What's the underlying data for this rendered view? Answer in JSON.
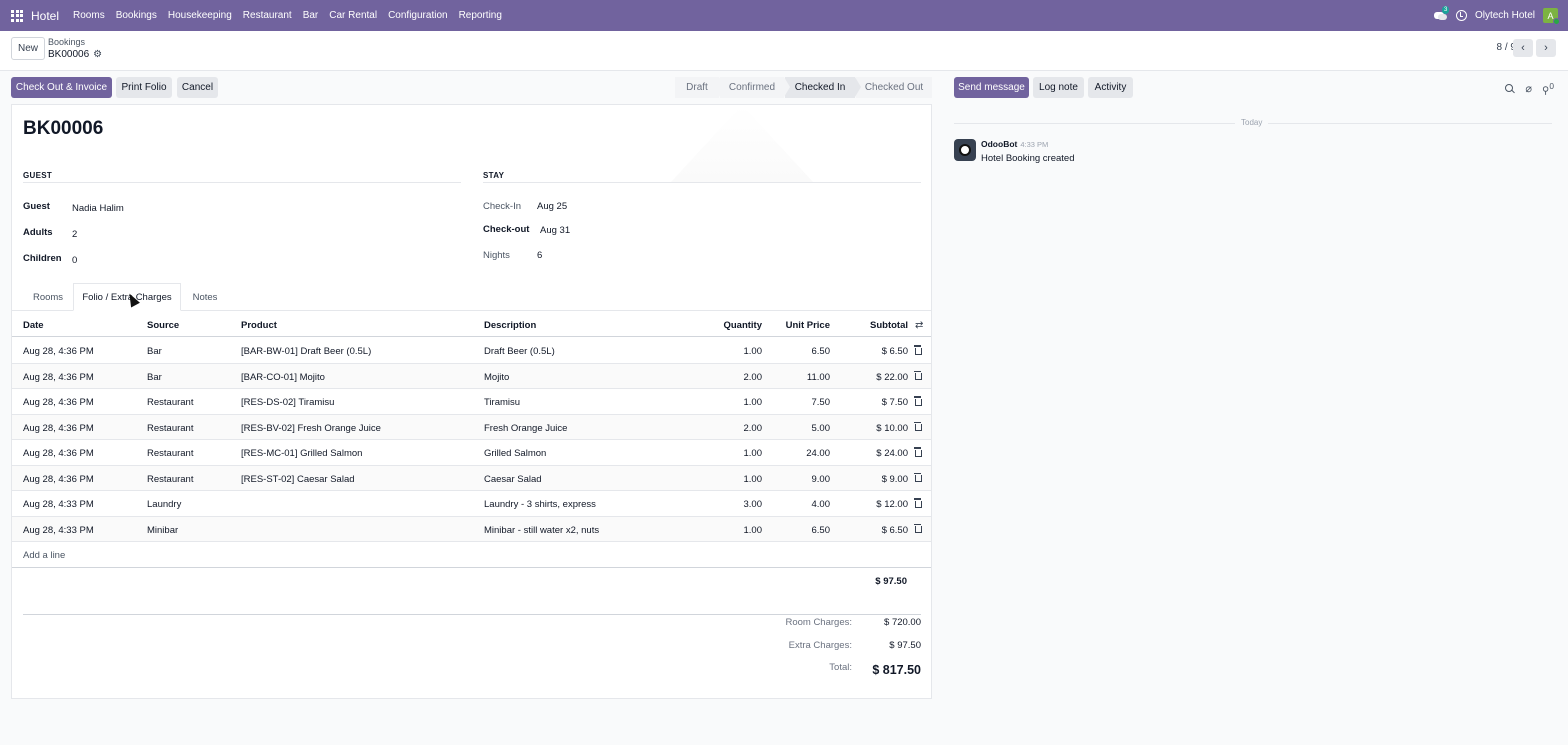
{
  "navbar": {
    "brand": "Hotel",
    "menu": [
      "Rooms",
      "Bookings",
      "Housekeeping",
      "Restaurant",
      "Bar",
      "Car Rental",
      "Configuration",
      "Reporting"
    ],
    "chat_badge": "3",
    "company": "Olytech Hotel",
    "avatar_letter": "A",
    "bar_color": "#71639e"
  },
  "control_panel": {
    "new_label": "New",
    "breadcrumb_parent": "Bookings",
    "breadcrumb_current": "BK00006",
    "pager": "8 / 9"
  },
  "actions": {
    "checkout_invoice": "Check Out & Invoice",
    "print_folio": "Print Folio",
    "cancel": "Cancel"
  },
  "statusbar": {
    "stages": [
      "Draft",
      "Confirmed",
      "Checked In",
      "Checked Out"
    ],
    "active": "Checked In"
  },
  "form": {
    "name": "BK00006",
    "guest_group_title": "GUEST",
    "stay_group_title": "STAY",
    "guest_label": "Guest",
    "guest_value": "Nadia Halim",
    "adults_label": "Adults",
    "adults_value": "2",
    "children_label": "Children",
    "children_value": "0",
    "checkin_label": "Check-In",
    "checkin_value": "Aug 25",
    "checkout_label": "Check-out",
    "checkout_value": "Aug 31",
    "nights_label": "Nights",
    "nights_value": "6"
  },
  "tabs": [
    "Rooms",
    "Folio / Extra Charges",
    "Notes"
  ],
  "active_tab": "Folio / Extra Charges",
  "table": {
    "headers": [
      "Date",
      "Source",
      "Product",
      "Description",
      "Quantity",
      "Unit Price",
      "Subtotal"
    ],
    "rows": [
      {
        "date": "Aug 28, 4:36 PM",
        "source": "Bar",
        "product": "[BAR-BW-01] Draft Beer (0.5L)",
        "description": "Draft Beer (0.5L)",
        "qty": "1.00",
        "price": "6.50",
        "subtotal": "$ 6.50"
      },
      {
        "date": "Aug 28, 4:36 PM",
        "source": "Bar",
        "product": "[BAR-CO-01] Mojito",
        "description": "Mojito",
        "qty": "2.00",
        "price": "11.00",
        "subtotal": "$ 22.00"
      },
      {
        "date": "Aug 28, 4:36 PM",
        "source": "Restaurant",
        "product": "[RES-DS-02] Tiramisu",
        "description": "Tiramisu",
        "qty": "1.00",
        "price": "7.50",
        "subtotal": "$ 7.50"
      },
      {
        "date": "Aug 28, 4:36 PM",
        "source": "Restaurant",
        "product": "[RES-BV-02] Fresh Orange Juice",
        "description": "Fresh Orange Juice",
        "qty": "2.00",
        "price": "5.00",
        "subtotal": "$ 10.00"
      },
      {
        "date": "Aug 28, 4:36 PM",
        "source": "Restaurant",
        "product": "[RES-MC-01] Grilled Salmon",
        "description": "Grilled Salmon",
        "qty": "1.00",
        "price": "24.00",
        "subtotal": "$ 24.00"
      },
      {
        "date": "Aug 28, 4:36 PM",
        "source": "Restaurant",
        "product": "[RES-ST-02] Caesar Salad",
        "description": "Caesar Salad",
        "qty": "1.00",
        "price": "9.00",
        "subtotal": "$ 9.00"
      },
      {
        "date": "Aug 28, 4:33 PM",
        "source": "Laundry",
        "product": "",
        "description": "Laundry - 3 shirts, express",
        "qty": "3.00",
        "price": "4.00",
        "subtotal": "$ 12.00"
      },
      {
        "date": "Aug 28, 4:33 PM",
        "source": "Minibar",
        "product": "",
        "description": "Minibar - still water x2, nuts",
        "qty": "1.00",
        "price": "6.50",
        "subtotal": "$ 6.50"
      }
    ],
    "add_line": "Add a line",
    "column_total": "$ 97.50"
  },
  "summary": {
    "room_label": "Room Charges:",
    "room_value": "$ 720.00",
    "extra_label": "Extra Charges:",
    "extra_value": "$ 97.50",
    "total_label": "Total:",
    "total_value": "$ 817.50"
  },
  "chatter": {
    "send_message": "Send message",
    "log_note": "Log note",
    "activity": "Activity",
    "follower_count": "0",
    "day_label": "Today",
    "author": "OdooBot",
    "time": "4:33 PM",
    "body": "Hotel Booking created"
  }
}
